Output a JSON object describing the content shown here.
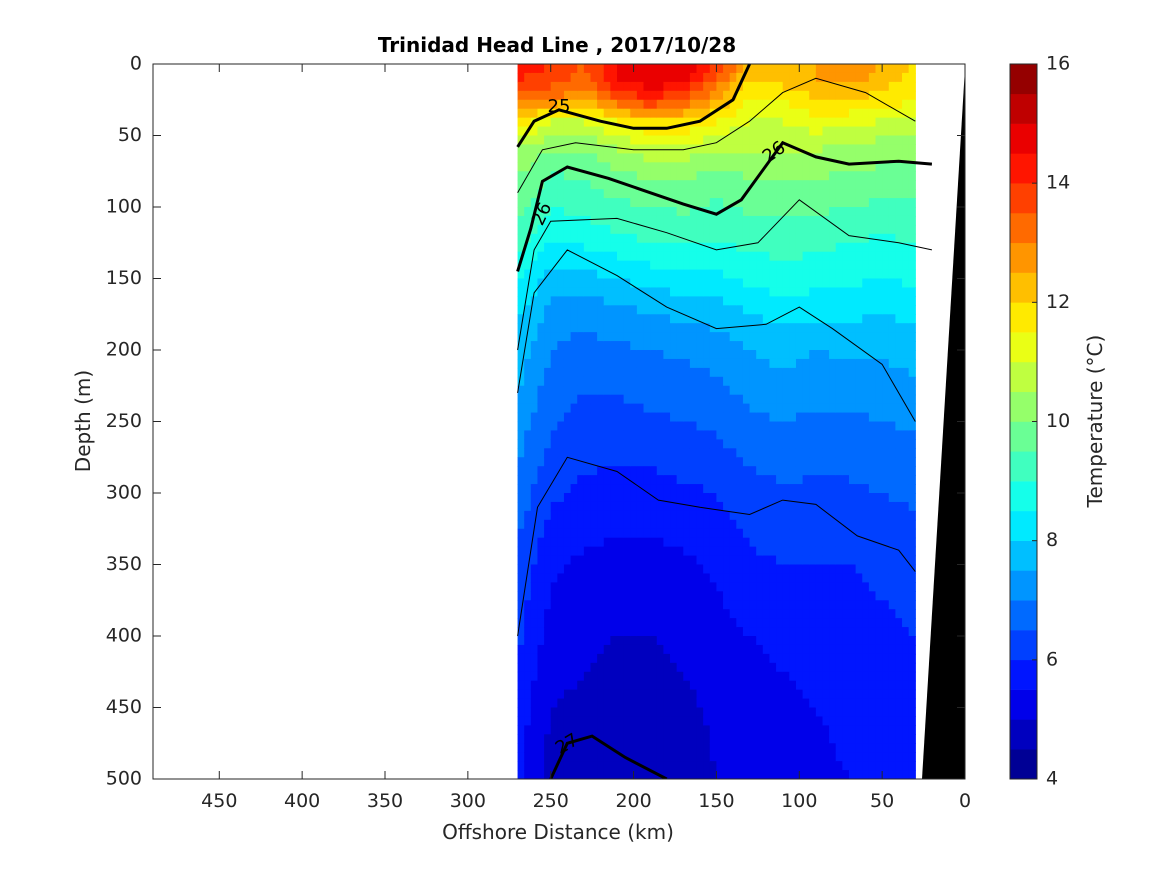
{
  "chart_data": {
    "type": "contourf",
    "title": "Trinidad Head Line , 2017/10/28",
    "xlabel": "Offshore Distance (km)",
    "ylabel": "Depth (m)",
    "xlim": [
      490,
      0
    ],
    "ylim": [
      500,
      0
    ],
    "x_reversed": true,
    "y_reversed": true,
    "x_ticks": [
      450,
      400,
      350,
      300,
      250,
      200,
      150,
      100,
      50,
      0
    ],
    "y_ticks": [
      0,
      50,
      100,
      150,
      200,
      250,
      300,
      350,
      400,
      450,
      500
    ],
    "colorbar": {
      "label": "Temperature (°C)",
      "min": 4,
      "max": 16,
      "step": 0.5,
      "ticks": [
        4,
        6,
        8,
        10,
        12,
        14,
        16
      ],
      "colormap": "jet"
    },
    "temperature_isotherms": [
      {
        "depth_m": [
          10,
          20,
          10,
          10,
          10,
          20,
          10,
          10,
          10,
          10
        ],
        "comment": ""
      }
    ],
    "temperature_field": {
      "x_km": [
        270,
        250,
        230,
        210,
        190,
        170,
        150,
        130,
        110,
        90,
        70,
        50,
        30
      ],
      "depth_m": [
        0,
        10,
        25,
        40,
        60,
        80,
        100,
        125,
        150,
        175,
        200,
        250,
        300,
        350,
        400,
        450,
        500
      ],
      "profiles": [
        [
          14.5,
          14,
          13,
          12,
          10.5,
          10,
          9.8,
          9.2,
          8.6,
          8.1,
          7.8,
          7.3,
          6.8,
          6.4,
          6.1,
          5.8,
          5.6
        ],
        [
          14,
          13.8,
          13,
          11,
          10,
          9.4,
          9.0,
          8.5,
          7.8,
          7.3,
          7.0,
          6.6,
          6.1,
          5.6,
          5.3,
          5.0,
          4.8
        ],
        [
          13.5,
          13.3,
          12.5,
          11,
          10,
          9.5,
          9.2,
          8.6,
          7.8,
          7.2,
          6.8,
          6.3,
          5.9,
          5.4,
          5.1,
          4.9,
          4.6
        ],
        [
          14.5,
          14.5,
          13.5,
          11.5,
          10.5,
          9.8,
          9.4,
          8.8,
          8.0,
          7.3,
          6.9,
          6.3,
          5.8,
          5.3,
          5.0,
          4.8,
          4.5
        ],
        [
          15,
          15,
          14,
          12,
          10.8,
          10,
          9.5,
          9.0,
          8.2,
          7.5,
          7.0,
          6.4,
          5.8,
          5.3,
          5.0,
          4.8,
          4.6
        ],
        [
          14.8,
          14.8,
          13.5,
          12,
          10.8,
          10,
          9.6,
          9.0,
          8.3,
          7.6,
          7.1,
          6.5,
          5.9,
          5.4,
          5.1,
          4.9,
          4.7
        ],
        [
          14,
          13.5,
          12.5,
          11.5,
          10.5,
          9.8,
          9.4,
          9.0,
          8.4,
          7.7,
          7.2,
          6.6,
          6.0,
          5.6,
          5.3,
          5.1,
          5.0
        ],
        [
          12.5,
          12,
          11.5,
          11,
          10.5,
          10,
          9.6,
          9.1,
          8.6,
          8.0,
          7.5,
          6.9,
          6.3,
          5.9,
          5.5,
          5.3,
          5.2
        ],
        [
          12.5,
          12.3,
          11.5,
          11,
          10.5,
          10,
          9.6,
          9.2,
          8.8,
          8.2,
          7.7,
          7.0,
          6.4,
          6.0,
          5.6,
          5.4,
          5.3
        ],
        [
          12.5,
          12.5,
          12,
          11.3,
          10.5,
          10,
          9.6,
          9.1,
          8.7,
          8.1,
          7.5,
          6.9,
          6.4,
          6.0,
          5.7,
          5.5,
          5.4
        ],
        [
          13,
          12.8,
          12,
          11.2,
          10.4,
          9.9,
          9.5,
          9.0,
          8.6,
          8.1,
          7.6,
          6.9,
          6.4,
          6.0,
          5.8,
          5.6,
          5.5
        ],
        [
          12.5,
          12.2,
          11.8,
          11.0,
          10.2,
          9.8,
          9.4,
          8.9,
          8.5,
          8.0,
          7.6,
          7.0,
          6.5,
          6.1,
          5.9,
          5.7,
          5.6
        ],
        [
          12,
          11.8,
          11.5,
          11.0,
          10.2,
          9.8,
          9.4,
          9.0,
          8.6,
          8.1,
          7.7,
          7.1,
          6.6,
          6.2,
          6.0,
          5.8,
          5.7
        ]
      ]
    },
    "density_contour_labels": [
      "25",
      "26",
      "26",
      "27"
    ],
    "colors": {
      "text": "#262626",
      "axis": "#262626",
      "bathymetry": "#000000",
      "contour": "#000000"
    }
  }
}
